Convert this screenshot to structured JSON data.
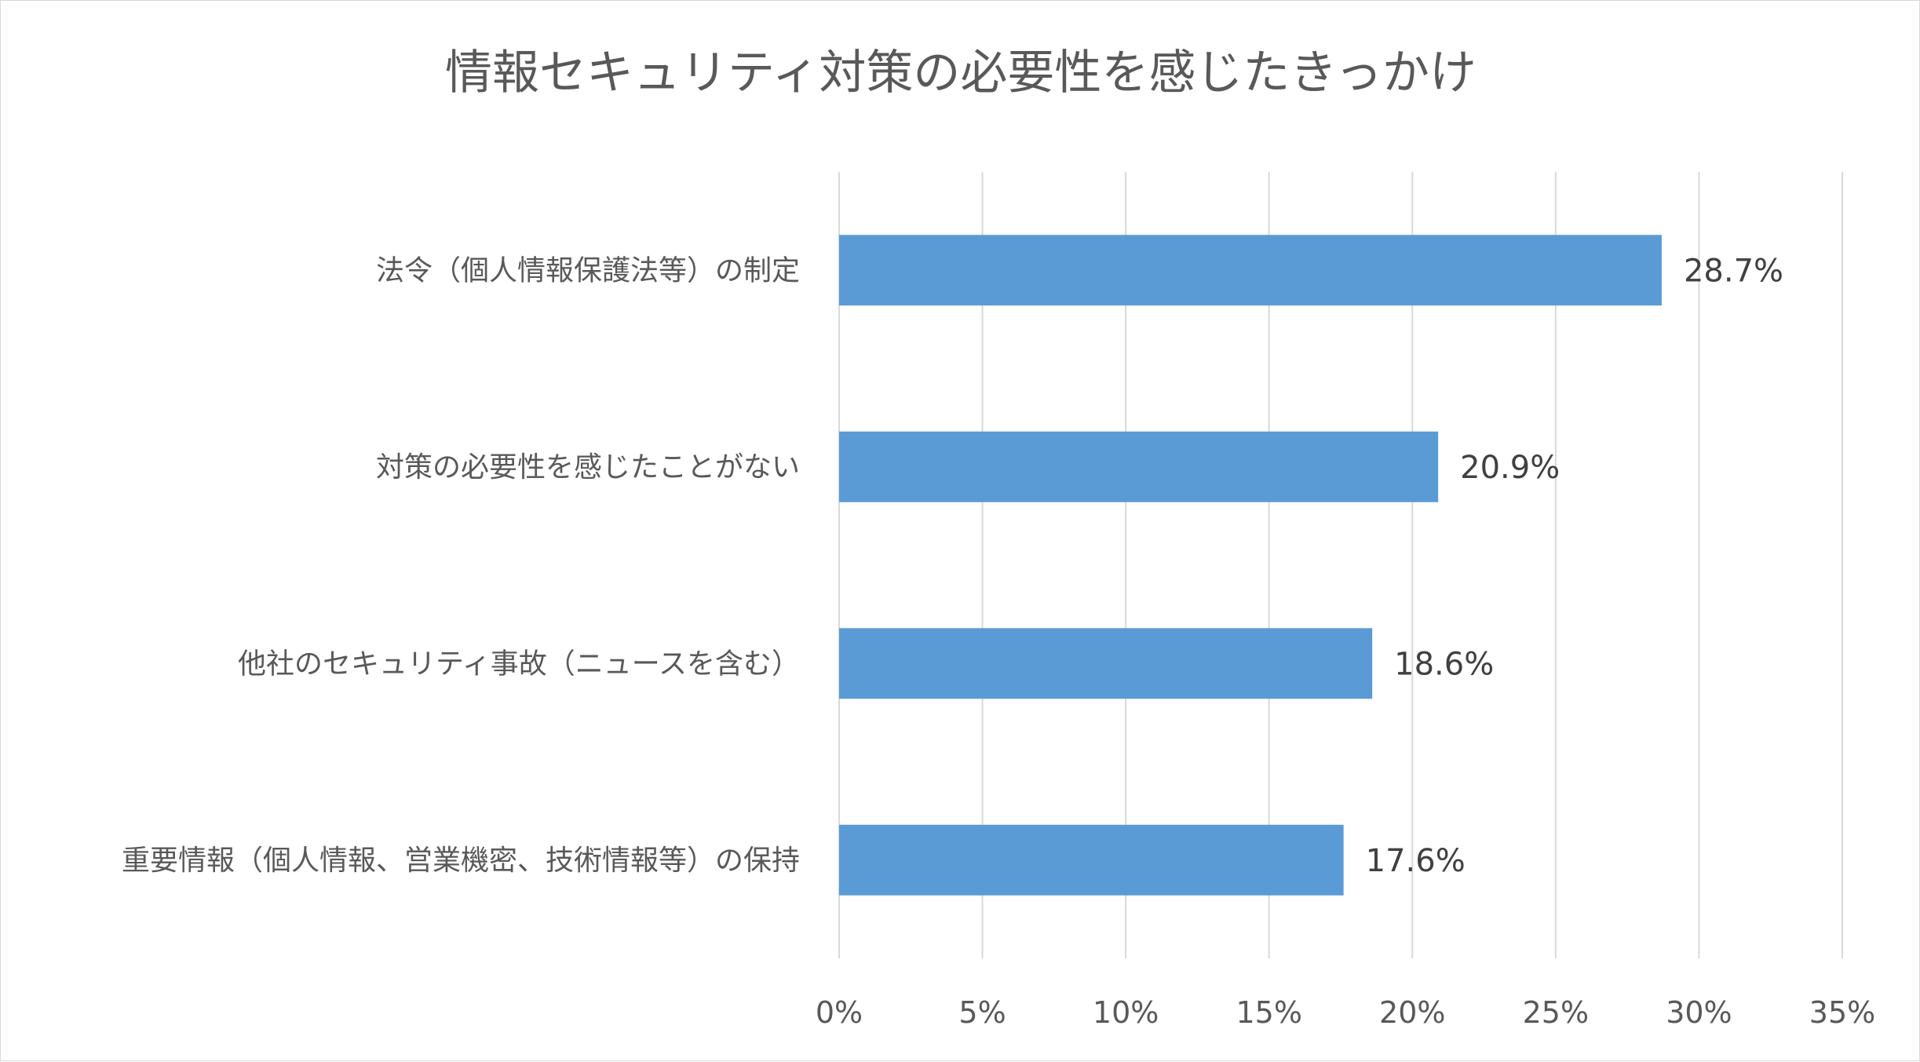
{
  "chart_data": {
    "type": "bar",
    "orientation": "horizontal",
    "title": "情報セキュリティ対策の必要性を感じたきっかけ",
    "categories": [
      "法令（個人情報保護法等）の制定",
      "対策の必要性を感じたことがない",
      "他社のセキュリティ事故（ニュースを含む）",
      "重要情報（個人情報、営業機密、技術情報等）の保持"
    ],
    "values": [
      28.7,
      20.9,
      18.6,
      17.6
    ],
    "data_labels": [
      "28.7%",
      "20.9%",
      "18.6%",
      "17.6%"
    ],
    "xlim": [
      0,
      35
    ],
    "xticks": [
      0,
      5,
      10,
      15,
      20,
      25,
      30,
      35
    ],
    "xtick_labels": [
      "0%",
      "5%",
      "10%",
      "15%",
      "20%",
      "25%",
      "30%",
      "35%"
    ],
    "xlabel": "",
    "ylabel": "",
    "grid": "vertical",
    "legend": "none",
    "bar_color": "#5b9bd5"
  }
}
